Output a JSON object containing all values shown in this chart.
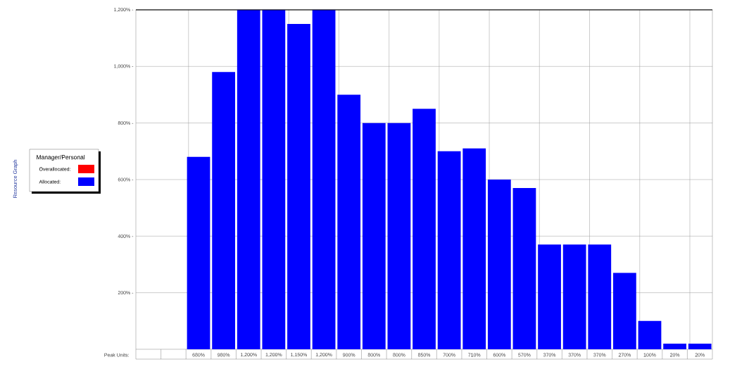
{
  "chart_data": {
    "type": "bar",
    "categories": [
      null,
      null,
      null,
      null,
      null,
      null,
      null,
      null,
      null,
      null,
      null,
      null,
      null,
      null,
      null,
      null,
      null,
      null,
      null,
      null,
      null,
      null,
      null
    ],
    "series": [
      {
        "name": "Overallocated:",
        "color": "#ff0000",
        "values": [
          null,
          null,
          null,
          null,
          null,
          null,
          null,
          null,
          null,
          null,
          null,
          null,
          null,
          null,
          null,
          null,
          null,
          null,
          null,
          null,
          null,
          null,
          null
        ]
      },
      {
        "name": "Allocated:",
        "color": "#0000ff",
        "values": [
          null,
          null,
          680,
          980,
          1200,
          1200,
          1150,
          1200,
          900,
          800,
          800,
          850,
          700,
          710,
          600,
          570,
          370,
          370,
          370,
          270,
          100,
          20,
          20
        ],
        "value_labels": [
          null,
          null,
          "680%",
          "980%",
          "1,200%",
          "1,200%",
          "1,150%",
          "1,200%",
          "900%",
          "800%",
          "800%",
          "850%",
          "700%",
          "710%",
          "600%",
          "570%",
          "370%",
          "370%",
          "370%",
          "270%",
          "100%",
          "20%",
          "20%"
        ]
      }
    ],
    "ylim": [
      0,
      1200
    ],
    "yticks": [
      {
        "value": 200,
        "label": "200% -"
      },
      {
        "value": 400,
        "label": "400% -"
      },
      {
        "value": 600,
        "label": "600% -"
      },
      {
        "value": 800,
        "label": "800% -"
      },
      {
        "value": 1000,
        "label": "1,000% -"
      },
      {
        "value": 1200,
        "label": "1,200% -"
      }
    ],
    "legend_title": "Manager/Personal",
    "legend": "left",
    "grid": true,
    "tick_labels": "y",
    "annotations": [
      "Peak Units:",
      "Resource Graph"
    ]
  }
}
